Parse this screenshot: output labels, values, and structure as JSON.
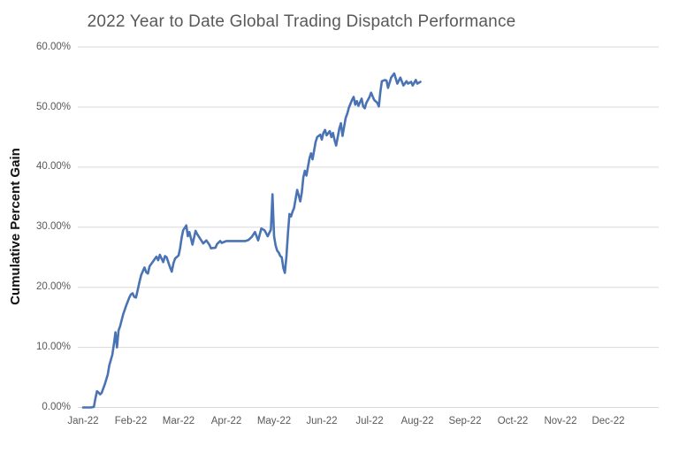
{
  "chart_data": {
    "type": "line",
    "title": "2022 Year to Date Global Trading Dispatch Performance",
    "ylabel": "Cumulative Percent Gain",
    "xlabel": "",
    "ylim": [
      0,
      60
    ],
    "y_tick_step": 10,
    "y_tick_labels": [
      "0.00%",
      "10.00%",
      "20.00%",
      "30.00%",
      "40.00%",
      "50.00%",
      "60.00%"
    ],
    "x_tick_labels": [
      "Jan-22",
      "Feb-22",
      "Mar-22",
      "Apr-22",
      "May-22",
      "Jun-22",
      "Jul-22",
      "Aug-22",
      "Sep-22",
      "Oct-22",
      "Nov-22",
      "Dec-22"
    ],
    "grid": "horizontal-only",
    "legend": "none",
    "line_color": "#4a73b4",
    "gridline_color": "#d9d9d9",
    "title_color": "#595959",
    "tick_label_color": "#595959",
    "series": [
      {
        "name": "Cumulative Percent Gain",
        "units": "%",
        "points": [
          [
            "2022-01-01",
            0.0
          ],
          [
            "2022-01-04",
            0.0
          ],
          [
            "2022-01-06",
            0.0
          ],
          [
            "2022-01-08",
            0.1
          ],
          [
            "2022-01-09",
            1.5
          ],
          [
            "2022-01-10",
            2.7
          ],
          [
            "2022-01-11",
            2.5
          ],
          [
            "2022-01-12",
            2.2
          ],
          [
            "2022-01-13",
            2.4
          ],
          [
            "2022-01-15",
            3.8
          ],
          [
            "2022-01-17",
            5.5
          ],
          [
            "2022-01-18",
            7.0
          ],
          [
            "2022-01-20",
            8.8
          ],
          [
            "2022-01-21",
            10.5
          ],
          [
            "2022-01-22",
            12.5
          ],
          [
            "2022-01-23",
            10.0
          ],
          [
            "2022-01-24",
            12.8
          ],
          [
            "2022-01-25",
            13.5
          ],
          [
            "2022-01-27",
            15.5
          ],
          [
            "2022-01-29",
            17.0
          ],
          [
            "2022-01-31",
            18.3
          ],
          [
            "2022-02-01",
            18.8
          ],
          [
            "2022-02-02",
            19.0
          ],
          [
            "2022-02-03",
            18.4
          ],
          [
            "2022-02-04",
            18.3
          ],
          [
            "2022-02-05",
            19.5
          ],
          [
            "2022-02-06",
            20.8
          ],
          [
            "2022-02-07",
            22.0
          ],
          [
            "2022-02-09",
            23.3
          ],
          [
            "2022-02-10",
            22.5
          ],
          [
            "2022-02-11",
            22.3
          ],
          [
            "2022-02-12",
            23.5
          ],
          [
            "2022-02-14",
            24.3
          ],
          [
            "2022-02-16",
            25.1
          ],
          [
            "2022-02-17",
            24.5
          ],
          [
            "2022-02-18",
            25.4
          ],
          [
            "2022-02-20",
            24.2
          ],
          [
            "2022-02-21",
            25.2
          ],
          [
            "2022-02-22",
            25.0
          ],
          [
            "2022-02-24",
            23.3
          ],
          [
            "2022-02-25",
            22.6
          ],
          [
            "2022-02-26",
            24.0
          ],
          [
            "2022-02-27",
            24.8
          ],
          [
            "2022-03-01",
            25.3
          ],
          [
            "2022-03-02",
            26.5
          ],
          [
            "2022-03-03",
            28.3
          ],
          [
            "2022-03-04",
            29.5
          ],
          [
            "2022-03-06",
            30.3
          ],
          [
            "2022-03-07",
            28.5
          ],
          [
            "2022-03-08",
            29.2
          ],
          [
            "2022-03-10",
            27.1
          ],
          [
            "2022-03-12",
            29.4
          ],
          [
            "2022-03-13",
            28.9
          ],
          [
            "2022-03-16",
            27.7
          ],
          [
            "2022-03-17",
            27.3
          ],
          [
            "2022-03-19",
            27.8
          ],
          [
            "2022-03-21",
            27.1
          ],
          [
            "2022-03-22",
            26.5
          ],
          [
            "2022-03-25",
            26.6
          ],
          [
            "2022-03-26",
            27.2
          ],
          [
            "2022-03-28",
            27.7
          ],
          [
            "2022-03-29",
            27.4
          ],
          [
            "2022-04-01",
            27.7
          ],
          [
            "2022-04-05",
            27.7
          ],
          [
            "2022-04-09",
            27.7
          ],
          [
            "2022-04-13",
            27.7
          ],
          [
            "2022-04-15",
            27.9
          ],
          [
            "2022-04-17",
            28.4
          ],
          [
            "2022-04-19",
            29.2
          ],
          [
            "2022-04-21",
            27.8
          ],
          [
            "2022-04-23",
            29.8
          ],
          [
            "2022-04-25",
            29.5
          ],
          [
            "2022-04-27",
            28.5
          ],
          [
            "2022-04-29",
            29.6
          ],
          [
            "2022-04-30",
            35.5
          ],
          [
            "2022-05-01",
            28.5
          ],
          [
            "2022-05-02",
            27.0
          ],
          [
            "2022-05-03",
            26.1
          ],
          [
            "2022-05-04",
            25.8
          ],
          [
            "2022-05-05",
            25.2
          ],
          [
            "2022-05-06",
            25.0
          ],
          [
            "2022-05-07",
            23.2
          ],
          [
            "2022-05-08",
            22.4
          ],
          [
            "2022-05-09",
            25.0
          ],
          [
            "2022-05-10",
            29.0
          ],
          [
            "2022-05-11",
            32.2
          ],
          [
            "2022-05-12",
            31.8
          ],
          [
            "2022-05-13",
            32.6
          ],
          [
            "2022-05-14",
            33.2
          ],
          [
            "2022-05-16",
            36.2
          ],
          [
            "2022-05-17",
            35.3
          ],
          [
            "2022-05-18",
            34.3
          ],
          [
            "2022-05-19",
            35.8
          ],
          [
            "2022-05-20",
            38.3
          ],
          [
            "2022-05-21",
            39.4
          ],
          [
            "2022-05-22",
            38.6
          ],
          [
            "2022-05-24",
            41.5
          ],
          [
            "2022-05-25",
            42.3
          ],
          [
            "2022-05-26",
            41.3
          ],
          [
            "2022-05-28",
            44.2
          ],
          [
            "2022-05-29",
            45.0
          ],
          [
            "2022-05-31",
            45.4
          ],
          [
            "2022-06-01",
            44.6
          ],
          [
            "2022-06-02",
            45.7
          ],
          [
            "2022-06-03",
            46.2
          ],
          [
            "2022-06-04",
            45.3
          ],
          [
            "2022-06-06",
            46.0
          ],
          [
            "2022-06-07",
            45.0
          ],
          [
            "2022-06-08",
            45.7
          ],
          [
            "2022-06-09",
            44.5
          ],
          [
            "2022-06-10",
            43.6
          ],
          [
            "2022-06-12",
            46.4
          ],
          [
            "2022-06-13",
            47.3
          ],
          [
            "2022-06-14",
            45.2
          ],
          [
            "2022-06-16",
            48.2
          ],
          [
            "2022-06-17",
            48.9
          ],
          [
            "2022-06-18",
            49.9
          ],
          [
            "2022-06-20",
            51.2
          ],
          [
            "2022-06-21",
            51.7
          ],
          [
            "2022-06-22",
            50.4
          ],
          [
            "2022-06-23",
            51.0
          ],
          [
            "2022-06-24",
            50.2
          ],
          [
            "2022-06-26",
            51.4
          ],
          [
            "2022-06-27",
            50.1
          ],
          [
            "2022-06-28",
            49.8
          ],
          [
            "2022-06-29",
            50.7
          ],
          [
            "2022-06-30",
            51.2
          ],
          [
            "2022-07-01",
            51.7
          ],
          [
            "2022-07-02",
            52.4
          ],
          [
            "2022-07-04",
            51.2
          ],
          [
            "2022-07-06",
            50.7
          ],
          [
            "2022-07-07",
            50.1
          ],
          [
            "2022-07-08",
            52.5
          ],
          [
            "2022-07-09",
            54.3
          ],
          [
            "2022-07-11",
            54.5
          ],
          [
            "2022-07-12",
            54.4
          ],
          [
            "2022-07-13",
            53.2
          ],
          [
            "2022-07-15",
            54.9
          ],
          [
            "2022-07-17",
            55.6
          ],
          [
            "2022-07-19",
            53.9
          ],
          [
            "2022-07-21",
            54.9
          ],
          [
            "2022-07-23",
            53.6
          ],
          [
            "2022-07-25",
            54.3
          ],
          [
            "2022-07-26",
            53.9
          ],
          [
            "2022-07-28",
            54.2
          ],
          [
            "2022-07-29",
            53.6
          ],
          [
            "2022-07-31",
            54.5
          ],
          [
            "2022-08-01",
            53.9
          ],
          [
            "2022-08-03",
            54.2
          ]
        ]
      }
    ]
  }
}
